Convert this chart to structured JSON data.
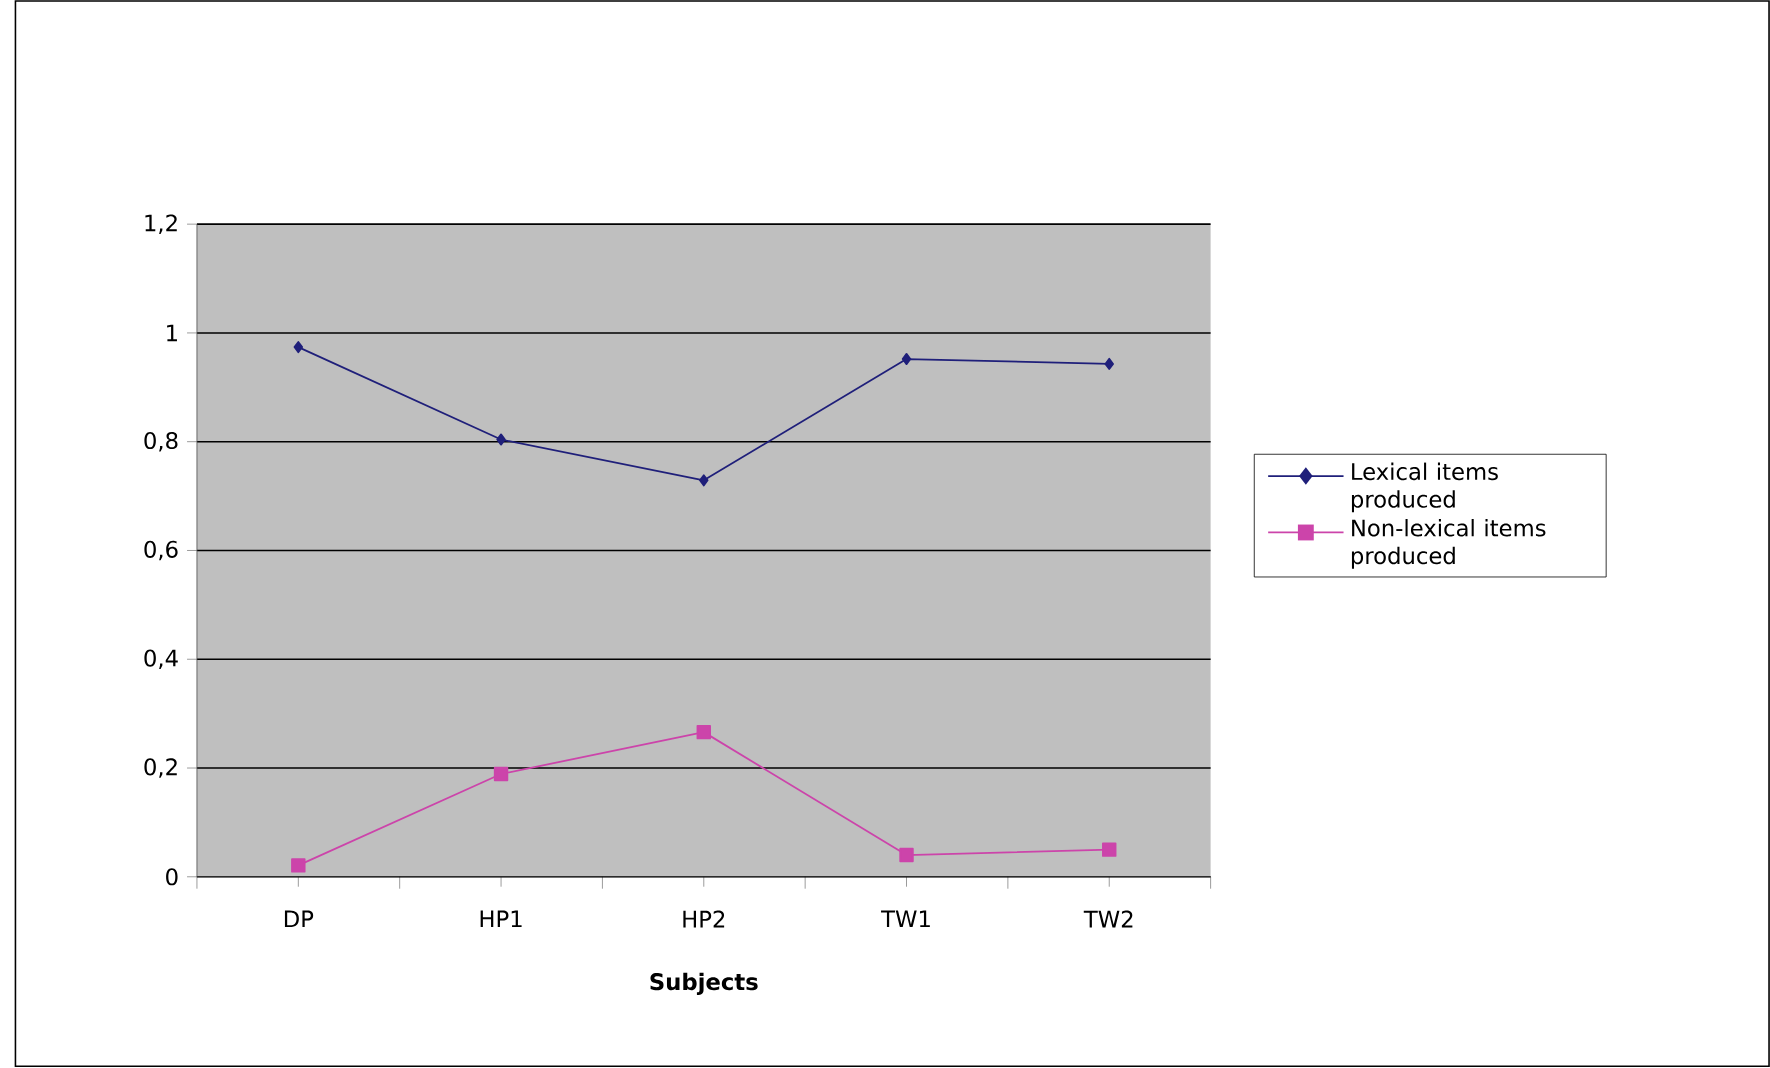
{
  "chart_data": {
    "type": "line",
    "xlabel": "Subjects",
    "categories": [
      "DP",
      "HP1",
      "HP2",
      "TW1",
      "TW2"
    ],
    "series": [
      {
        "name": "Lexical items produced",
        "color": "#1f1f7a",
        "marker": "diamond",
        "values": [
          0.974,
          0.804,
          0.729,
          0.952,
          0.943
        ]
      },
      {
        "name": "Non-lexical items produced",
        "color": "#cc44aa",
        "marker": "square",
        "values": [
          0.021,
          0.189,
          0.266,
          0.04,
          0.05
        ]
      }
    ],
    "ylim": [
      0,
      1.2
    ],
    "yticks": [
      0,
      {
        "value": 0.2,
        "label": "0,2"
      },
      {
        "value": 0.4,
        "label": "0,4"
      },
      {
        "value": 0.6,
        "label": "0,6"
      },
      {
        "value": 0.8,
        "label": "0,8"
      },
      1,
      {
        "value": 1.2,
        "label": "1,2"
      }
    ],
    "grid": "y",
    "legend": "right",
    "line_style": "solid"
  }
}
